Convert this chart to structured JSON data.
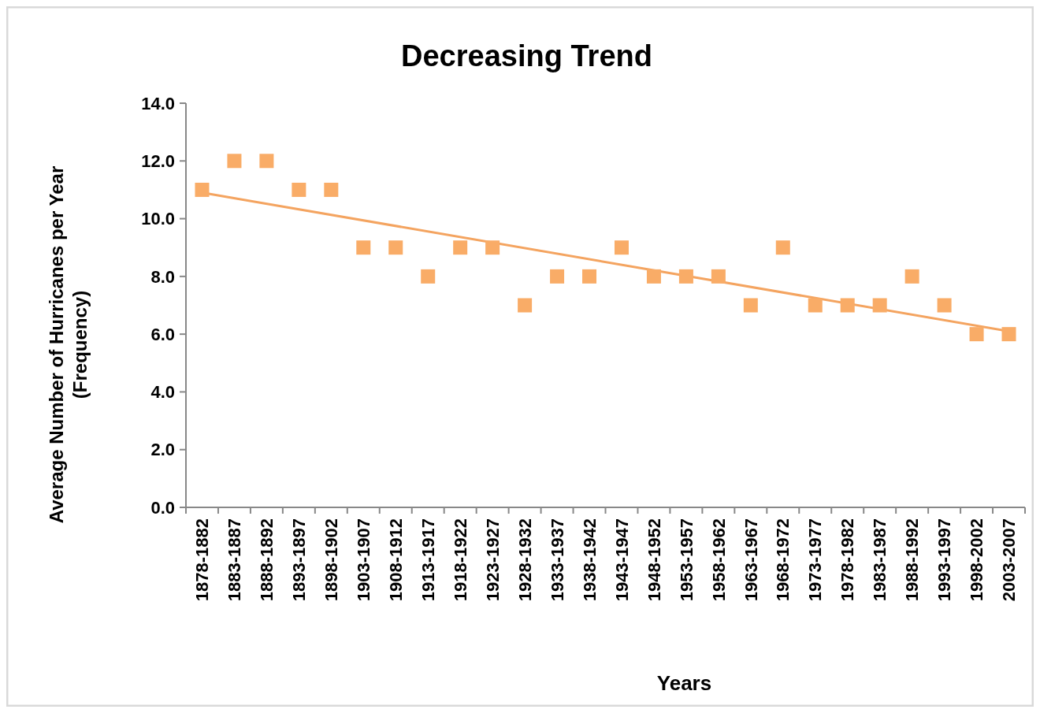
{
  "chart_data": {
    "type": "scatter",
    "title": "Decreasing Trend",
    "xlabel": "Years",
    "ylabel": "Average Number of Hurricanes per Year\n(Frequency)",
    "categories": [
      "1878-1882",
      "1883-1887",
      "1888-1892",
      "1893-1897",
      "1898-1902",
      "1903-1907",
      "1908-1912",
      "1913-1917",
      "1918-1922",
      "1923-1927",
      "1928-1932",
      "1933-1937",
      "1938-1942",
      "1943-1947",
      "1948-1952",
      "1953-1957",
      "1958-1962",
      "1963-1967",
      "1968-1972",
      "1973-1977",
      "1978-1982",
      "1983-1987",
      "1988-1992",
      "1993-1997",
      "1998-2002",
      "2003-2007"
    ],
    "series": [
      {
        "color": "#f9ac67",
        "marker": "square",
        "values": [
          11,
          12,
          12,
          11,
          11,
          9,
          9,
          8,
          9,
          9,
          7,
          8,
          8,
          9,
          8,
          8,
          8,
          7,
          9,
          7,
          7,
          7,
          8,
          7,
          6,
          6
        ]
      },
      {
        "type": "line",
        "marker": "none",
        "color": "#f4a460",
        "x": [
          "1878-1882",
          "2003-2007"
        ],
        "values": [
          10.9,
          6.1
        ]
      }
    ],
    "ylim": [
      0,
      14
    ],
    "yticks": [
      {
        "value": 0,
        "label": "0.0"
      },
      {
        "value": 2,
        "label": "2.0"
      },
      {
        "value": 4,
        "label": "4.0"
      },
      {
        "value": 6,
        "label": "6.0"
      },
      {
        "value": 8,
        "label": "8.0"
      },
      {
        "value": 10,
        "label": "10.0"
      },
      {
        "value": 12,
        "label": "12.0"
      },
      {
        "value": 14,
        "label": "14.0"
      }
    ],
    "grid": false
  }
}
